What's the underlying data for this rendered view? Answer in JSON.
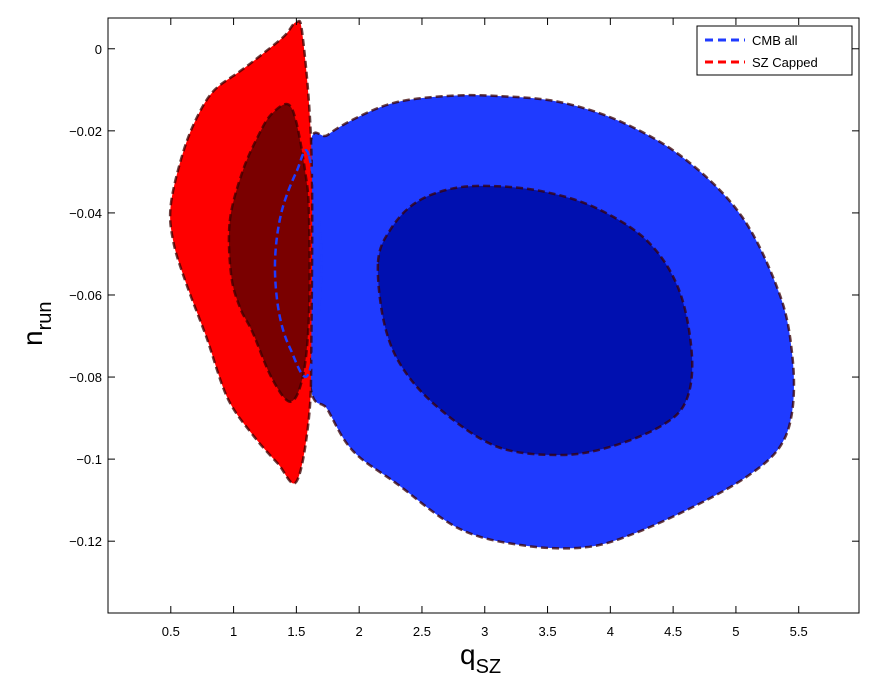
{
  "chart_data": {
    "type": "contour",
    "xlabel": {
      "main": "q",
      "sub": "SZ"
    },
    "ylabel": {
      "main": "n",
      "sub": "run"
    },
    "xlim": [
      0,
      5.98
    ],
    "ylim": [
      -0.1375,
      0.0075
    ],
    "xticks": [
      0.5,
      1,
      1.5,
      2,
      2.5,
      3,
      3.5,
      4,
      4.5,
      5,
      5.5
    ],
    "yticks": [
      0,
      -0.02,
      -0.04,
      -0.06,
      -0.08,
      -0.1,
      -0.12
    ],
    "xtick_labels": [
      "0.5",
      "1",
      "1.5",
      "2",
      "2.5",
      "3",
      "3.5",
      "4",
      "4.5",
      "5",
      "5.5"
    ],
    "ytick_labels": [
      "0",
      "−0.02",
      "−0.04",
      "−0.06",
      "−0.08",
      "−0.1",
      "−0.12"
    ],
    "grid": false,
    "legend_position": "top-right",
    "legend": [
      {
        "label": "CMB all",
        "color": "#1f3bff",
        "style": "dashed"
      },
      {
        "label": "SZ Capped",
        "color": "#ff0000",
        "style": "dashed"
      }
    ],
    "series": [
      {
        "name": "CMB all",
        "line_color": "#1f3bff",
        "regions": [
          {
            "level": "95%",
            "fill": "#1f3bff",
            "points": [
              [
                1.6,
                -0.026
              ],
              [
                1.75,
                -0.021
              ],
              [
                2.0,
                -0.0165
              ],
              [
                2.3,
                -0.013
              ],
              [
                2.7,
                -0.0115
              ],
              [
                3.1,
                -0.0115
              ],
              [
                3.6,
                -0.013
              ],
              [
                4.1,
                -0.018
              ],
              [
                4.6,
                -0.027
              ],
              [
                5.05,
                -0.041
              ],
              [
                5.35,
                -0.06
              ],
              [
                5.45,
                -0.075
              ],
              [
                5.45,
                -0.088
              ],
              [
                5.35,
                -0.097
              ],
              [
                5.1,
                -0.104
              ],
              [
                4.7,
                -0.111
              ],
              [
                4.2,
                -0.118
              ],
              [
                3.8,
                -0.1215
              ],
              [
                3.3,
                -0.121
              ],
              [
                2.8,
                -0.117
              ],
              [
                2.3,
                -0.106
              ],
              [
                1.95,
                -0.098
              ],
              [
                1.75,
                -0.088
              ],
              [
                1.6,
                -0.079
              ]
            ]
          },
          {
            "level": "68%",
            "fill": "#0010b0",
            "points": [
              [
                2.15,
                -0.052
              ],
              [
                2.25,
                -0.044
              ],
              [
                2.45,
                -0.0375
              ],
              [
                2.75,
                -0.034
              ],
              [
                3.1,
                -0.0335
              ],
              [
                3.5,
                -0.035
              ],
              [
                3.9,
                -0.039
              ],
              [
                4.3,
                -0.047
              ],
              [
                4.55,
                -0.059
              ],
              [
                4.65,
                -0.075
              ],
              [
                4.6,
                -0.086
              ],
              [
                4.4,
                -0.092
              ],
              [
                4.0,
                -0.097
              ],
              [
                3.6,
                -0.099
              ],
              [
                3.1,
                -0.097
              ],
              [
                2.65,
                -0.088
              ],
              [
                2.35,
                -0.078
              ],
              [
                2.2,
                -0.067
              ]
            ]
          }
        ]
      },
      {
        "name": "SZ Capped",
        "line_color": "#ff0000",
        "regions": [
          {
            "level": "95%",
            "fill": "#ff0000",
            "points": [
              [
                0.5,
                -0.038
              ],
              [
                0.6,
                -0.025
              ],
              [
                0.72,
                -0.016
              ],
              [
                0.85,
                -0.01
              ],
              [
                1.05,
                -0.0055
              ],
              [
                1.2,
                -0.002
              ],
              [
                1.4,
                0.003
              ],
              [
                1.5,
                0.0065
              ],
              [
                1.55,
                0.003
              ],
              [
                1.62,
                -0.025
              ],
              [
                1.62,
                -0.07
              ],
              [
                1.6,
                -0.09
              ],
              [
                1.5,
                -0.1055
              ],
              [
                1.35,
                -0.101
              ],
              [
                1.15,
                -0.094
              ],
              [
                0.95,
                -0.085
              ],
              [
                0.78,
                -0.07
              ],
              [
                0.62,
                -0.057
              ],
              [
                0.52,
                -0.047
              ]
            ]
          },
          {
            "level": "68%",
            "fill": "#7a0000",
            "points": [
              [
                0.97,
                -0.042
              ],
              [
                1.07,
                -0.03
              ],
              [
                1.2,
                -0.021
              ],
              [
                1.3,
                -0.016
              ],
              [
                1.43,
                -0.0135
              ],
              [
                1.5,
                -0.018
              ],
              [
                1.57,
                -0.03
              ],
              [
                1.6,
                -0.04
              ],
              [
                1.6,
                -0.065
              ],
              [
                1.55,
                -0.08
              ],
              [
                1.45,
                -0.086
              ],
              [
                1.3,
                -0.08
              ],
              [
                1.15,
                -0.069
              ],
              [
                1.05,
                -0.063
              ],
              [
                0.98,
                -0.055
              ]
            ]
          }
        ]
      }
    ]
  }
}
